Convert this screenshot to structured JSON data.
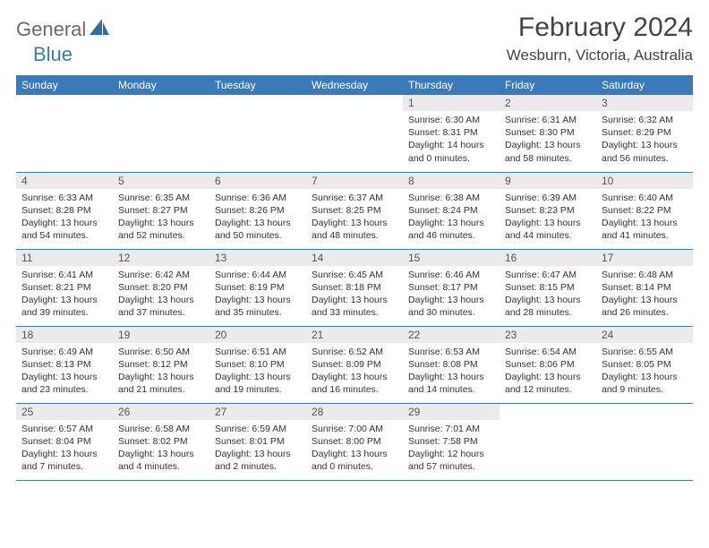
{
  "logo": {
    "text1": "General",
    "text2": "Blue"
  },
  "title": "February 2024",
  "location": "Wesburn, Victoria, Australia",
  "colors": {
    "header_bg": "#3a7ab8",
    "daynum_bg": "#eceaea",
    "border": "#3a7ab8"
  },
  "weekdays": [
    "Sunday",
    "Monday",
    "Tuesday",
    "Wednesday",
    "Thursday",
    "Friday",
    "Saturday"
  ],
  "weeks": [
    [
      null,
      null,
      null,
      null,
      {
        "n": "1",
        "sr": "Sunrise: 6:30 AM",
        "ss": "Sunset: 8:31 PM",
        "dl": "Daylight: 14 hours and 0 minutes."
      },
      {
        "n": "2",
        "sr": "Sunrise: 6:31 AM",
        "ss": "Sunset: 8:30 PM",
        "dl": "Daylight: 13 hours and 58 minutes."
      },
      {
        "n": "3",
        "sr": "Sunrise: 6:32 AM",
        "ss": "Sunset: 8:29 PM",
        "dl": "Daylight: 13 hours and 56 minutes."
      }
    ],
    [
      {
        "n": "4",
        "sr": "Sunrise: 6:33 AM",
        "ss": "Sunset: 8:28 PM",
        "dl": "Daylight: 13 hours and 54 minutes."
      },
      {
        "n": "5",
        "sr": "Sunrise: 6:35 AM",
        "ss": "Sunset: 8:27 PM",
        "dl": "Daylight: 13 hours and 52 minutes."
      },
      {
        "n": "6",
        "sr": "Sunrise: 6:36 AM",
        "ss": "Sunset: 8:26 PM",
        "dl": "Daylight: 13 hours and 50 minutes."
      },
      {
        "n": "7",
        "sr": "Sunrise: 6:37 AM",
        "ss": "Sunset: 8:25 PM",
        "dl": "Daylight: 13 hours and 48 minutes."
      },
      {
        "n": "8",
        "sr": "Sunrise: 6:38 AM",
        "ss": "Sunset: 8:24 PM",
        "dl": "Daylight: 13 hours and 46 minutes."
      },
      {
        "n": "9",
        "sr": "Sunrise: 6:39 AM",
        "ss": "Sunset: 8:23 PM",
        "dl": "Daylight: 13 hours and 44 minutes."
      },
      {
        "n": "10",
        "sr": "Sunrise: 6:40 AM",
        "ss": "Sunset: 8:22 PM",
        "dl": "Daylight: 13 hours and 41 minutes."
      }
    ],
    [
      {
        "n": "11",
        "sr": "Sunrise: 6:41 AM",
        "ss": "Sunset: 8:21 PM",
        "dl": "Daylight: 13 hours and 39 minutes."
      },
      {
        "n": "12",
        "sr": "Sunrise: 6:42 AM",
        "ss": "Sunset: 8:20 PM",
        "dl": "Daylight: 13 hours and 37 minutes."
      },
      {
        "n": "13",
        "sr": "Sunrise: 6:44 AM",
        "ss": "Sunset: 8:19 PM",
        "dl": "Daylight: 13 hours and 35 minutes."
      },
      {
        "n": "14",
        "sr": "Sunrise: 6:45 AM",
        "ss": "Sunset: 8:18 PM",
        "dl": "Daylight: 13 hours and 33 minutes."
      },
      {
        "n": "15",
        "sr": "Sunrise: 6:46 AM",
        "ss": "Sunset: 8:17 PM",
        "dl": "Daylight: 13 hours and 30 minutes."
      },
      {
        "n": "16",
        "sr": "Sunrise: 6:47 AM",
        "ss": "Sunset: 8:15 PM",
        "dl": "Daylight: 13 hours and 28 minutes."
      },
      {
        "n": "17",
        "sr": "Sunrise: 6:48 AM",
        "ss": "Sunset: 8:14 PM",
        "dl": "Daylight: 13 hours and 26 minutes."
      }
    ],
    [
      {
        "n": "18",
        "sr": "Sunrise: 6:49 AM",
        "ss": "Sunset: 8:13 PM",
        "dl": "Daylight: 13 hours and 23 minutes."
      },
      {
        "n": "19",
        "sr": "Sunrise: 6:50 AM",
        "ss": "Sunset: 8:12 PM",
        "dl": "Daylight: 13 hours and 21 minutes."
      },
      {
        "n": "20",
        "sr": "Sunrise: 6:51 AM",
        "ss": "Sunset: 8:10 PM",
        "dl": "Daylight: 13 hours and 19 minutes."
      },
      {
        "n": "21",
        "sr": "Sunrise: 6:52 AM",
        "ss": "Sunset: 8:09 PM",
        "dl": "Daylight: 13 hours and 16 minutes."
      },
      {
        "n": "22",
        "sr": "Sunrise: 6:53 AM",
        "ss": "Sunset: 8:08 PM",
        "dl": "Daylight: 13 hours and 14 minutes."
      },
      {
        "n": "23",
        "sr": "Sunrise: 6:54 AM",
        "ss": "Sunset: 8:06 PM",
        "dl": "Daylight: 13 hours and 12 minutes."
      },
      {
        "n": "24",
        "sr": "Sunrise: 6:55 AM",
        "ss": "Sunset: 8:05 PM",
        "dl": "Daylight: 13 hours and 9 minutes."
      }
    ],
    [
      {
        "n": "25",
        "sr": "Sunrise: 6:57 AM",
        "ss": "Sunset: 8:04 PM",
        "dl": "Daylight: 13 hours and 7 minutes."
      },
      {
        "n": "26",
        "sr": "Sunrise: 6:58 AM",
        "ss": "Sunset: 8:02 PM",
        "dl": "Daylight: 13 hours and 4 minutes."
      },
      {
        "n": "27",
        "sr": "Sunrise: 6:59 AM",
        "ss": "Sunset: 8:01 PM",
        "dl": "Daylight: 13 hours and 2 minutes."
      },
      {
        "n": "28",
        "sr": "Sunrise: 7:00 AM",
        "ss": "Sunset: 8:00 PM",
        "dl": "Daylight: 13 hours and 0 minutes."
      },
      {
        "n": "29",
        "sr": "Sunrise: 7:01 AM",
        "ss": "Sunset: 7:58 PM",
        "dl": "Daylight: 12 hours and 57 minutes."
      },
      null,
      null
    ]
  ]
}
